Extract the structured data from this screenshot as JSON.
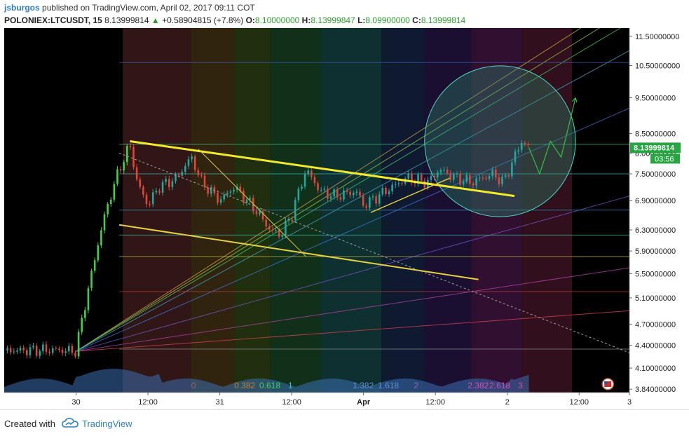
{
  "header": {
    "user": "jsburgos",
    "published": "published on TradingView.com, April 02, 2017 09:11 COT",
    "symbol": "POLONIEX:LTCUSDT, 15",
    "last": "8.13999814",
    "up_arrow": "▲",
    "change": "+0.58904815 (+7.8%)",
    "o_label": "O:",
    "o_value": "8.10000000",
    "h_label": "H:",
    "h_value": "8.13999847",
    "l_label": "L:",
    "l_value": "8.09900000",
    "c_label": "C:",
    "c_value": "8.13999814"
  },
  "footer": {
    "created_with": "Created with",
    "brand": "TradingView"
  },
  "colors": {
    "background": "#000000",
    "bull": "#26a69a",
    "bull_bright": "#3fd14a",
    "bear": "#e0443a",
    "trendline": "#f2ea2a",
    "price_tag": "#26a641",
    "circle": "#4dd8c2",
    "axis_text": "#222222"
  },
  "chart_data": {
    "type": "candlestick",
    "y_ticks": [
      "11.50000000",
      "10.50000000",
      "9.50000000",
      "8.50000000",
      "8.00000000",
      "7.50000000",
      "6.90000000",
      "6.30000000",
      "5.90000000",
      "5.50000000",
      "5.10000000",
      "4.70000000",
      "4.40000000",
      "4.10000000",
      "3.84000000"
    ],
    "ylim": [
      3.8,
      11.8
    ],
    "y_scale": "log",
    "x_ticks": [
      "30",
      "12:00",
      "31",
      "12:00",
      "Apr",
      "12:00",
      "2",
      "12:00",
      "3"
    ],
    "price_tag": "8.13999814",
    "countdown": "03:56",
    "fib_time_labels": [
      "0",
      "0.382",
      "0.618",
      "1",
      "1.382",
      "1.618",
      "2",
      "2.382",
      "2.618",
      "3"
    ],
    "price_path": [
      {
        "t": 0.0,
        "p": 4.33
      },
      {
        "t": 0.7,
        "p": 4.34
      },
      {
        "t": 1.0,
        "p": 4.32
      },
      {
        "t": 1.05,
        "p": 4.6
      },
      {
        "t": 1.2,
        "p": 5.4
      },
      {
        "t": 1.4,
        "p": 6.6
      },
      {
        "t": 1.6,
        "p": 7.6
      },
      {
        "t": 1.75,
        "p": 8.2
      },
      {
        "t": 1.85,
        "p": 7.3
      },
      {
        "t": 2.0,
        "p": 6.8
      },
      {
        "t": 2.15,
        "p": 7.2
      },
      {
        "t": 2.4,
        "p": 7.4
      },
      {
        "t": 2.6,
        "p": 7.9
      },
      {
        "t": 2.75,
        "p": 7.3
      },
      {
        "t": 3.0,
        "p": 6.9
      },
      {
        "t": 3.2,
        "p": 7.2
      },
      {
        "t": 3.5,
        "p": 6.7
      },
      {
        "t": 3.7,
        "p": 6.3
      },
      {
        "t": 3.85,
        "p": 6.2
      },
      {
        "t": 4.0,
        "p": 6.6
      },
      {
        "t": 4.2,
        "p": 7.6
      },
      {
        "t": 4.4,
        "p": 7.1
      },
      {
        "t": 4.6,
        "p": 7.0
      },
      {
        "t": 4.9,
        "p": 7.1
      },
      {
        "t": 5.0,
        "p": 6.8
      },
      {
        "t": 5.2,
        "p": 7.0
      },
      {
        "t": 5.4,
        "p": 7.2
      },
      {
        "t": 5.6,
        "p": 7.4
      },
      {
        "t": 5.9,
        "p": 7.3
      },
      {
        "t": 6.05,
        "p": 7.6
      },
      {
        "t": 6.3,
        "p": 7.4
      },
      {
        "t": 6.5,
        "p": 7.3
      },
      {
        "t": 6.8,
        "p": 7.5
      },
      {
        "t": 6.95,
        "p": 7.3
      },
      {
        "t": 7.1,
        "p": 7.9
      },
      {
        "t": 7.2,
        "p": 8.3
      },
      {
        "t": 7.3,
        "p": 8.14
      }
    ],
    "projection": [
      {
        "t": 7.3,
        "p": 8.14
      },
      {
        "t": 7.45,
        "p": 7.5
      },
      {
        "t": 7.6,
        "p": 8.3
      },
      {
        "t": 7.75,
        "p": 7.9
      },
      {
        "t": 7.95,
        "p": 9.5
      }
    ],
    "channel_upper": [
      {
        "t": 1.75,
        "p": 8.3
      },
      {
        "t": 7.1,
        "p": 7.0
      }
    ],
    "channel_lower": [
      {
        "t": 1.6,
        "p": 6.4
      },
      {
        "t": 6.6,
        "p": 5.4
      }
    ],
    "trend_short": [
      {
        "t": 2.7,
        "p": 8.1
      },
      {
        "t": 4.2,
        "p": 5.8
      }
    ],
    "rising_line": [
      {
        "t": 5.1,
        "p": 6.65
      },
      {
        "t": 6.2,
        "p": 7.4
      }
    ],
    "target_circle": {
      "center_t": 6.9,
      "center_p": 8.3,
      "radius_t": 1.05
    }
  }
}
